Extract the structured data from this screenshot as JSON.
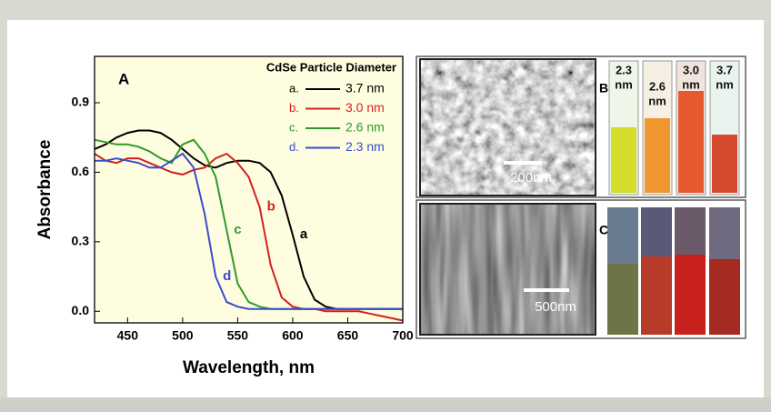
{
  "chart_data": {
    "type": "line",
    "panel_label": "A",
    "legend_title": "CdSe Particle Diameter",
    "xlabel": "Wavelength, nm",
    "ylabel": "Absorbance",
    "x": [
      420,
      430,
      440,
      450,
      460,
      470,
      480,
      490,
      500,
      510,
      520,
      530,
      540,
      550,
      560,
      570,
      580,
      590,
      600,
      610,
      620,
      630,
      640,
      650,
      660,
      670,
      680,
      690,
      700
    ],
    "series": [
      {
        "name": "3.7 nm",
        "prefix": "a.",
        "label": "a",
        "color": "#000000",
        "values": [
          0.7,
          0.72,
          0.75,
          0.77,
          0.78,
          0.78,
          0.77,
          0.74,
          0.7,
          0.66,
          0.63,
          0.62,
          0.64,
          0.65,
          0.65,
          0.64,
          0.6,
          0.5,
          0.33,
          0.15,
          0.05,
          0.02,
          0.01,
          0.01,
          0.01,
          0.01,
          0.01,
          0.01,
          0.01
        ]
      },
      {
        "name": "3.0 nm",
        "prefix": "b.",
        "label": "b",
        "color": "#d42020",
        "values": [
          0.68,
          0.65,
          0.64,
          0.66,
          0.66,
          0.64,
          0.62,
          0.6,
          0.59,
          0.61,
          0.62,
          0.66,
          0.68,
          0.64,
          0.58,
          0.45,
          0.2,
          0.06,
          0.02,
          0.01,
          0.01,
          0.0,
          0.0,
          0.0,
          0.0,
          -0.01,
          -0.02,
          -0.03,
          -0.04
        ]
      },
      {
        "name": "2.6 nm",
        "prefix": "c.",
        "label": "c",
        "color": "#2e9a2e",
        "values": [
          0.74,
          0.73,
          0.72,
          0.72,
          0.71,
          0.69,
          0.66,
          0.64,
          0.72,
          0.74,
          0.68,
          0.58,
          0.35,
          0.12,
          0.04,
          0.02,
          0.01,
          0.01,
          0.01,
          0.01,
          0.01,
          0.01,
          0.01,
          0.01,
          0.01,
          0.01,
          0.01,
          0.01,
          0.01
        ]
      },
      {
        "name": "2.3 nm",
        "prefix": "d.",
        "label": "d",
        "color": "#3a4ccc",
        "values": [
          0.65,
          0.65,
          0.66,
          0.65,
          0.64,
          0.62,
          0.62,
          0.65,
          0.68,
          0.62,
          0.42,
          0.15,
          0.04,
          0.02,
          0.01,
          0.01,
          0.01,
          0.01,
          0.01,
          0.01,
          0.01,
          0.01,
          0.01,
          0.01,
          0.01,
          0.01,
          0.01,
          0.01,
          0.01
        ]
      }
    ],
    "xlim": [
      420,
      700
    ],
    "ylim": [
      -0.05,
      1.1
    ],
    "xticks": [
      450,
      500,
      550,
      600,
      650,
      700
    ],
    "yticks": [
      {
        "value": 0,
        "label": "0.0"
      },
      0.3,
      0.6,
      0.9
    ],
    "background": "#fffde0"
  },
  "panels": {
    "b": {
      "label": "B",
      "scale_bar": "200nm",
      "tubes": [
        {
          "lines": [
            "2.3",
            "nm"
          ]
        },
        {
          "lines": [
            "2.6",
            "nm"
          ]
        },
        {
          "lines": [
            "3.0",
            "nm"
          ]
        },
        {
          "lines": [
            "3.7",
            "nm"
          ]
        }
      ]
    },
    "c": {
      "label": "C",
      "scale_bar": "500nm"
    }
  }
}
